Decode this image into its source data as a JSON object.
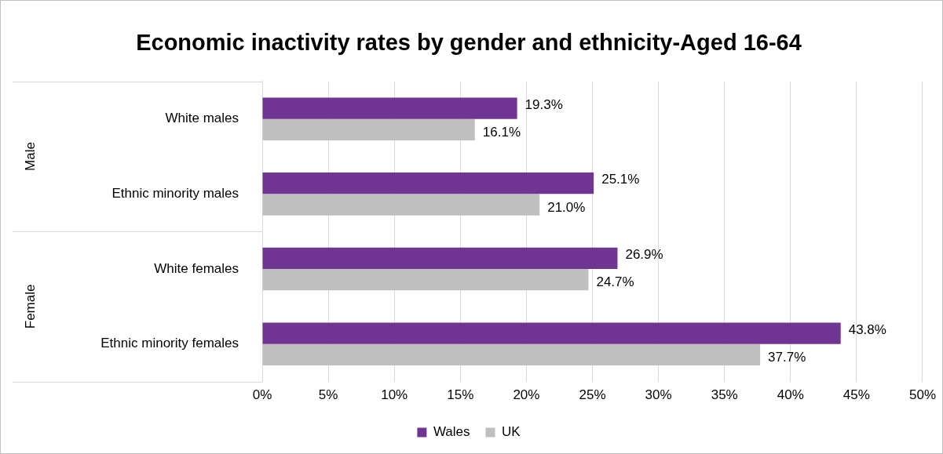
{
  "chart_data": {
    "type": "bar",
    "orientation": "horizontal",
    "title": "Economic inactivity rates by gender and ethnicity-Aged 16-64",
    "categories": [
      "White males",
      "Ethnic minority males",
      "White females",
      "Ethnic minority females"
    ],
    "series": [
      {
        "name": "Wales",
        "color": "#703593",
        "values": [
          19.3,
          25.1,
          26.9,
          43.8
        ],
        "value_labels": [
          "19.3%",
          "25.1%",
          "26.9%",
          "43.8%"
        ]
      },
      {
        "name": "UK",
        "color": "#bfbfbf",
        "values": [
          16.1,
          21.0,
          24.7,
          37.7
        ],
        "value_labels": [
          "16.1%",
          "21.0%",
          "24.7%",
          "37.7%"
        ]
      }
    ],
    "annotations": [
      "Male",
      "Female"
    ],
    "xlim": [
      0,
      50
    ],
    "xticks": [
      {
        "value": 0,
        "label": "0%"
      },
      {
        "value": 5,
        "label": "5%"
      },
      {
        "value": 10,
        "label": "10%"
      },
      {
        "value": 15,
        "label": "15%"
      },
      {
        "value": 20,
        "label": "20%"
      },
      {
        "value": 25,
        "label": "25%"
      },
      {
        "value": 30,
        "label": "30%"
      },
      {
        "value": 35,
        "label": "35%"
      },
      {
        "value": 40,
        "label": "40%"
      },
      {
        "value": 45,
        "label": "45%"
      },
      {
        "value": 50,
        "label": "50%"
      }
    ],
    "grid": "x",
    "legend": "bottom"
  }
}
